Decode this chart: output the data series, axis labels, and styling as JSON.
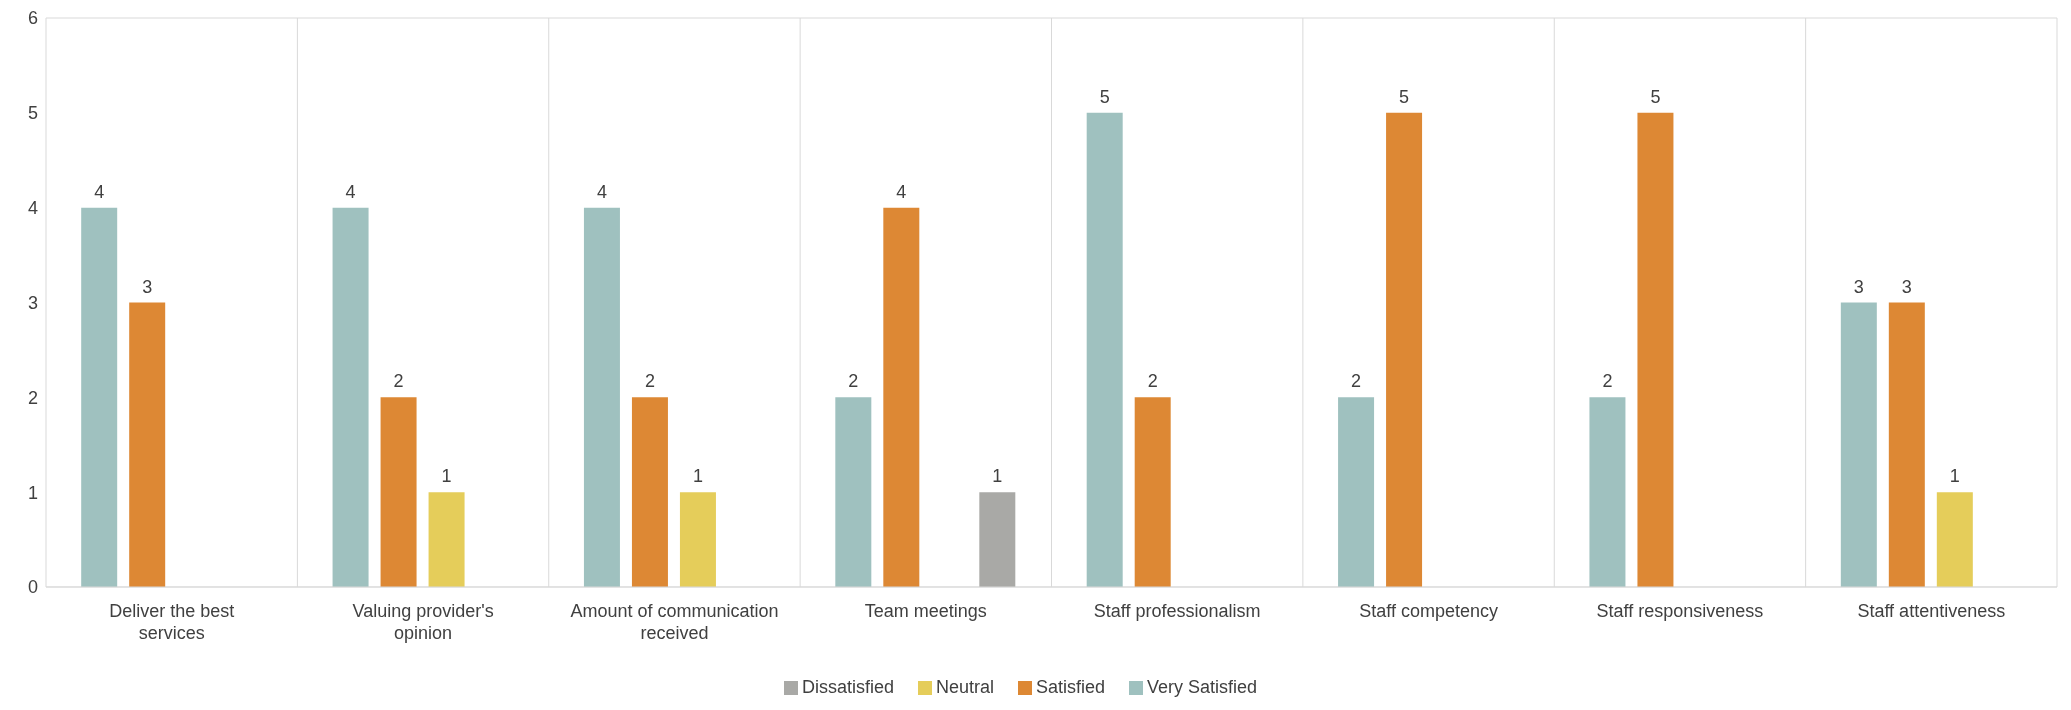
{
  "chart_data": {
    "type": "bar",
    "categories": [
      "Deliver the best services",
      "Valuing provider's opinion",
      "Amount of communication received",
      "Team meetings",
      "Staff professionalism",
      "Staff competency",
      "Staff responsiveness",
      "Staff attentiveness"
    ],
    "series": [
      {
        "name": "Very Satisfied",
        "color": "#9fc1bf",
        "values": [
          4,
          4,
          4,
          2,
          5,
          2,
          2,
          3
        ]
      },
      {
        "name": "Satisfied",
        "color": "#dd8834",
        "values": [
          3,
          2,
          2,
          4,
          2,
          5,
          5,
          3
        ]
      },
      {
        "name": "Neutral",
        "color": "#e5cd5a",
        "values": [
          null,
          1,
          1,
          null,
          null,
          null,
          null,
          1
        ]
      },
      {
        "name": "Dissatisfied",
        "color": "#a9a9a6",
        "values": [
          null,
          null,
          null,
          1,
          null,
          null,
          null,
          null
        ]
      }
    ],
    "ylim": [
      0,
      6
    ],
    "yticks": [
      0,
      1,
      2,
      3,
      4,
      5,
      6
    ],
    "grid": true,
    "data_labels": true,
    "legend": "bottom"
  }
}
